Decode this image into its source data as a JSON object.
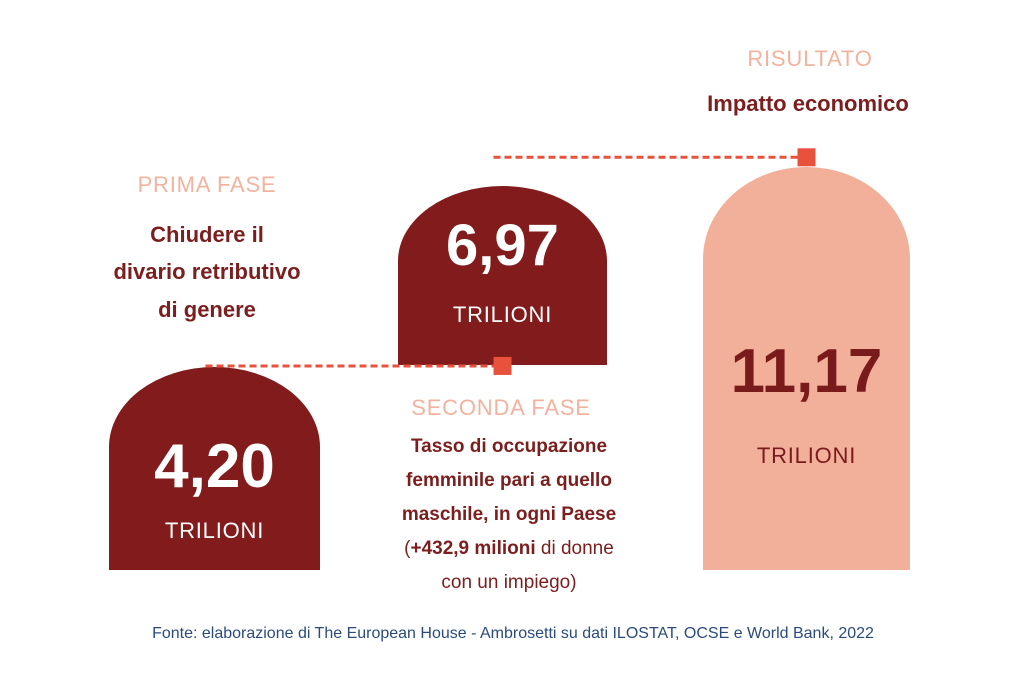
{
  "colors": {
    "title_text": "#7b1e1e",
    "phase_label": "#f2b39e",
    "value_on_light_bar": "#7a1b1b",
    "connector": "#e8523c",
    "source_text": "#2a4b7c"
  },
  "chart_data": {
    "type": "bar",
    "waterfall": true,
    "is_total": [
      false,
      false,
      true
    ],
    "categories": [
      "PRIMA FASE",
      "SECONDA FASE",
      "RISULTATO"
    ],
    "values": [
      4.2,
      6.97,
      11.17
    ],
    "data_labels": [
      "4,20",
      "6,97",
      "11,17"
    ],
    "unit_label": "TRILIONI",
    "bar_colors": [
      "#821b1b",
      "#821b1b",
      "#f2b09b"
    ],
    "descriptions": [
      [
        "Chiudere il",
        "divario retributivo",
        "di genere"
      ],
      [
        "Tasso di occupazione",
        "femminile pari a quello",
        "maschile, in ogni Paese"
      ],
      [
        "Impatto economico"
      ]
    ],
    "annotation": {
      "prefix": "(",
      "bold": "+432,9 milioni",
      "suffix": " di donne",
      "line2": "con un impiego)"
    },
    "grid": false,
    "axes_visible": false
  },
  "source": "Fonte: elaborazione di The European House - Ambrosetti su dati ILOSTAT, OCSE e World Bank, 2022"
}
